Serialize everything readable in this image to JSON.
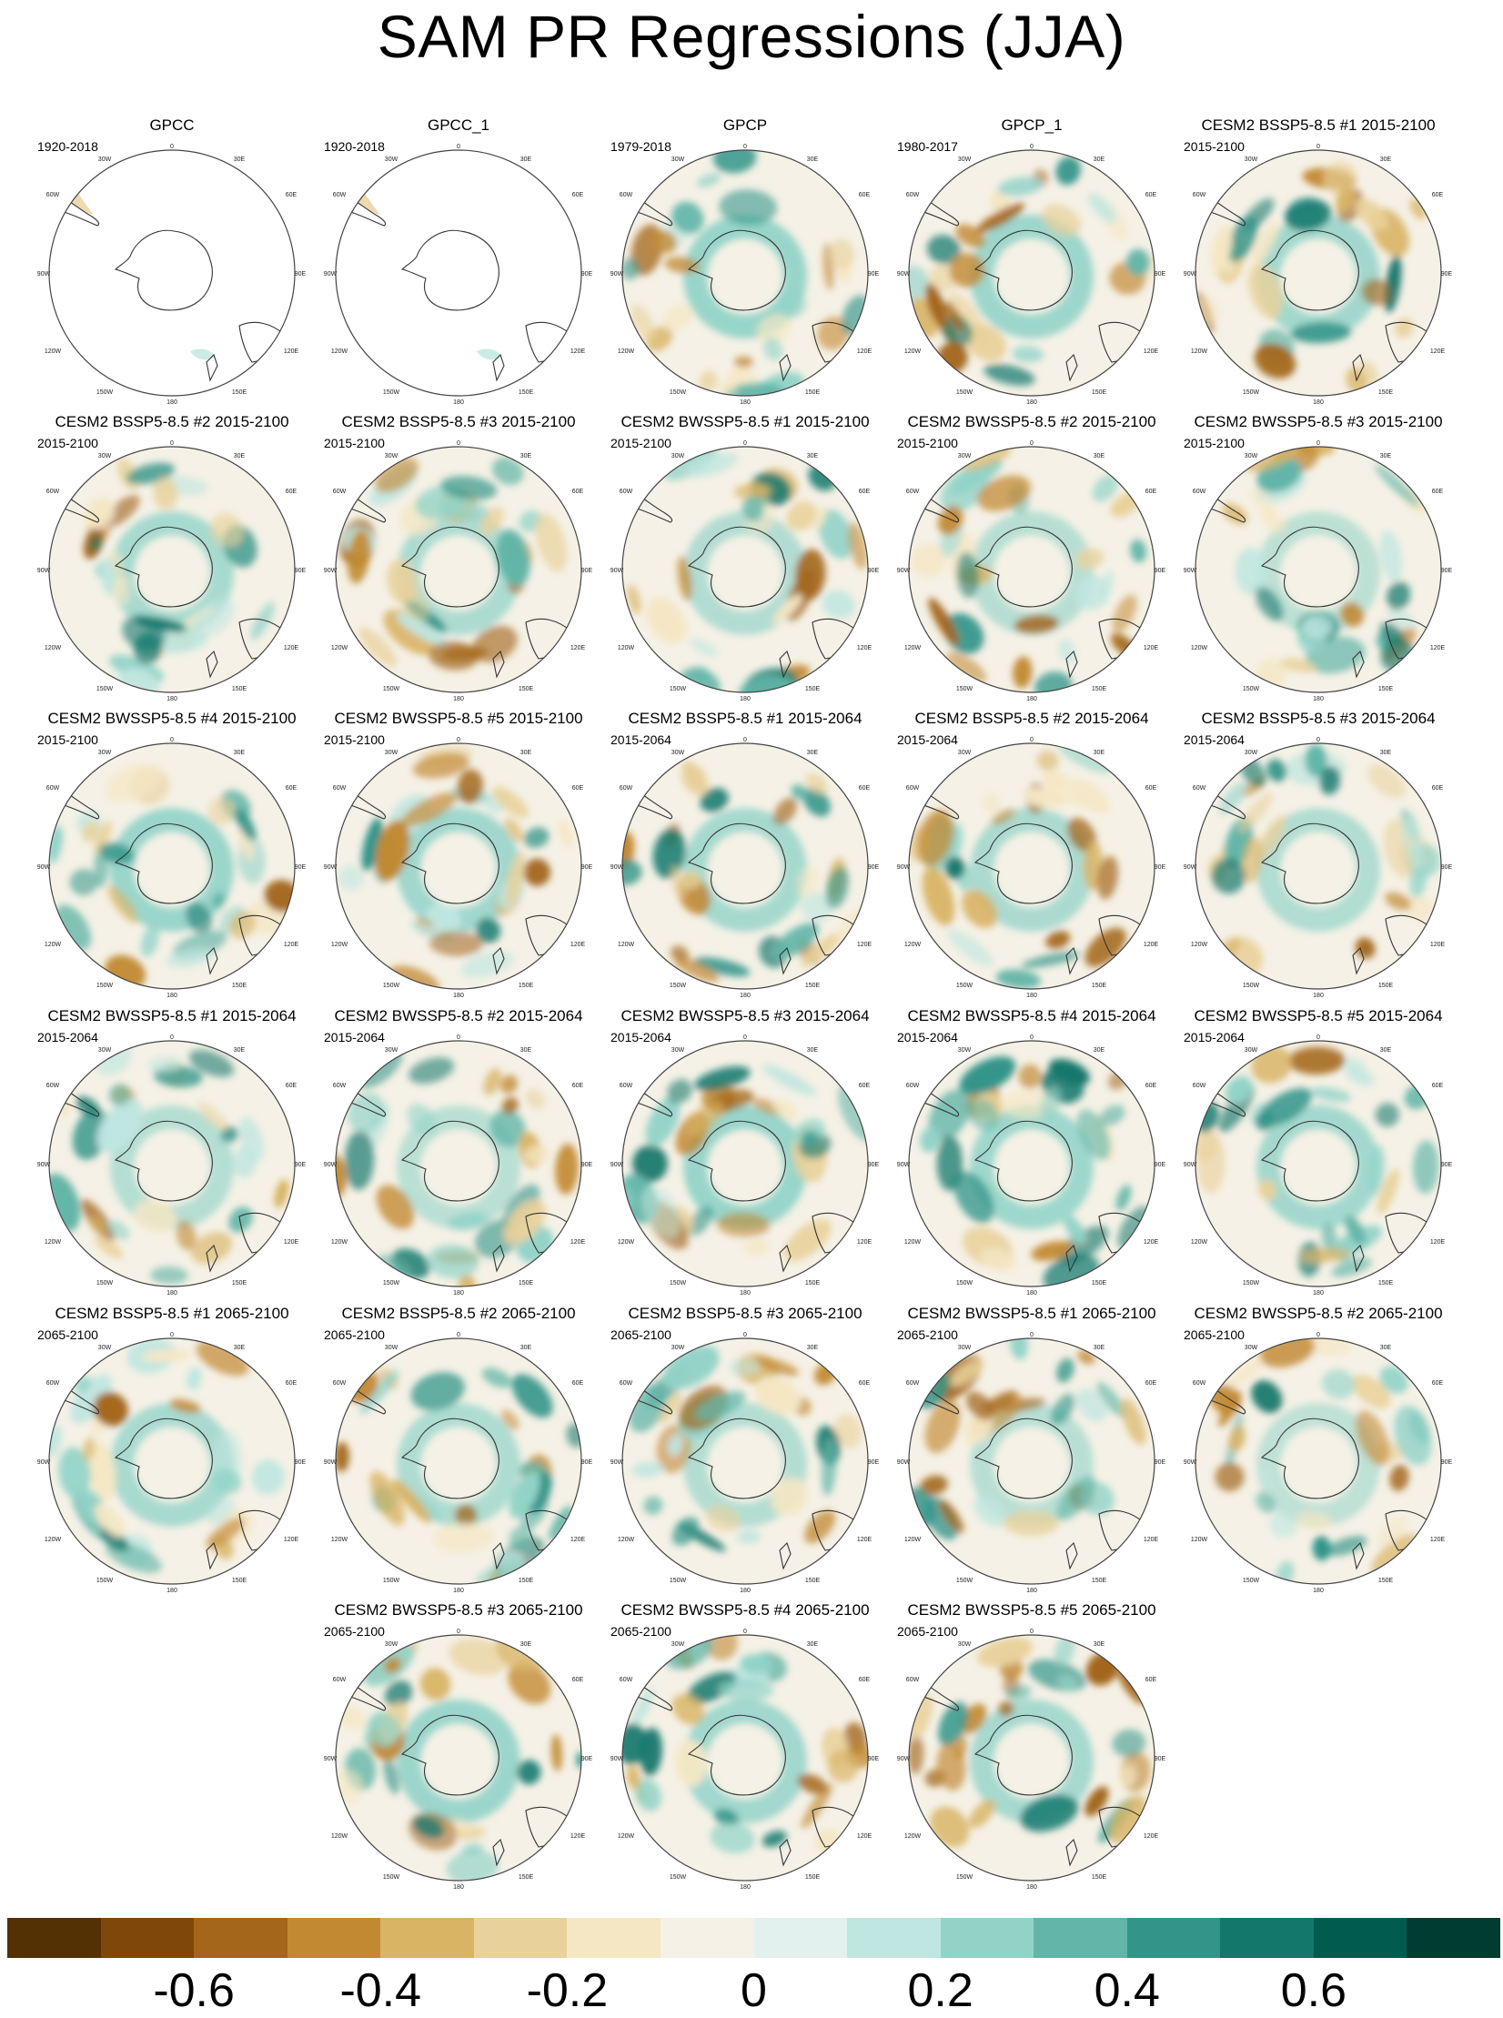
{
  "title": "SAM PR Regressions (JJA)",
  "map_ticks": {
    "top": "0",
    "top_left": "30W",
    "top_right": "30E",
    "upper_left": "60W",
    "upper_right": "60E",
    "left": "90W",
    "right": "90E",
    "lower_left": "120W",
    "lower_right": "120E",
    "bottom_left": "150W",
    "bottom_right": "150E",
    "bottom": "180"
  },
  "panels": [
    {
      "title": "GPCC",
      "period": "1920-2018",
      "mostly_blank": true
    },
    {
      "title": "GPCC_1",
      "period": "1920-2018",
      "mostly_blank": true
    },
    {
      "title": "GPCP",
      "period": "1979-2018"
    },
    {
      "title": "GPCP_1",
      "period": "1980-2017"
    },
    {
      "title": "CESM2 BSSP5-8.5 #1 2015-2100",
      "period": "2015-2100"
    },
    {
      "title": "CESM2 BSSP5-8.5 #2 2015-2100",
      "period": "2015-2100"
    },
    {
      "title": "CESM2 BSSP5-8.5 #3 2015-2100",
      "period": "2015-2100"
    },
    {
      "title": "CESM2 BWSSP5-8.5 #1 2015-2100",
      "period": "2015-2100"
    },
    {
      "title": "CESM2 BWSSP5-8.5 #2 2015-2100",
      "period": "2015-2100"
    },
    {
      "title": "CESM2 BWSSP5-8.5 #3 2015-2100",
      "period": "2015-2100"
    },
    {
      "title": "CESM2 BWSSP5-8.5 #4 2015-2100",
      "period": "2015-2100"
    },
    {
      "title": "CESM2 BWSSP5-8.5 #5 2015-2100",
      "period": "2015-2100"
    },
    {
      "title": "CESM2 BSSP5-8.5 #1 2015-2064",
      "period": "2015-2064"
    },
    {
      "title": "CESM2 BSSP5-8.5 #2 2015-2064",
      "period": "2015-2064"
    },
    {
      "title": "CESM2 BSSP5-8.5 #3 2015-2064",
      "period": "2015-2064"
    },
    {
      "title": "CESM2 BWSSP5-8.5 #1 2015-2064",
      "period": "2015-2064"
    },
    {
      "title": "CESM2 BWSSP5-8.5 #2 2015-2064",
      "period": "2015-2064"
    },
    {
      "title": "CESM2 BWSSP5-8.5 #3 2015-2064",
      "period": "2015-2064"
    },
    {
      "title": "CESM2 BWSSP5-8.5 #4 2015-2064",
      "period": "2015-2064"
    },
    {
      "title": "CESM2 BWSSP5-8.5 #5 2015-2064",
      "period": "2015-2064"
    },
    {
      "title": "CESM2 BSSP5-8.5 #1 2065-2100",
      "period": "2065-2100"
    },
    {
      "title": "CESM2 BSSP5-8.5 #2 2065-2100",
      "period": "2065-2100"
    },
    {
      "title": "CESM2 BSSP5-8.5 #3 2065-2100",
      "period": "2065-2100"
    },
    {
      "title": "CESM2 BWSSP5-8.5 #1 2065-2100",
      "period": "2065-2100"
    },
    {
      "title": "CESM2 BWSSP5-8.5 #2 2065-2100",
      "period": "2065-2100"
    },
    {
      "title": "CESM2 BWSSP5-8.5 #3 2065-2100",
      "period": "2065-2100"
    },
    {
      "title": "CESM2 BWSSP5-8.5 #4 2065-2100",
      "period": "2065-2100"
    },
    {
      "title": "CESM2 BWSSP5-8.5 #5 2065-2100",
      "period": "2065-2100"
    }
  ],
  "colorbar": {
    "colors": [
      "#543005",
      "#7f4709",
      "#a3661a",
      "#c28932",
      "#d9b465",
      "#e9d19b",
      "#f5e7c4",
      "#f5f1e6",
      "#e2f0ee",
      "#bfe6e0",
      "#92d3c8",
      "#62b5a8",
      "#33958a",
      "#13776c",
      "#015c4f",
      "#003c30"
    ],
    "labels": [
      "-0.6",
      "-0.4",
      "-0.2",
      "0",
      "0.2",
      "0.4",
      "0.6"
    ]
  }
}
